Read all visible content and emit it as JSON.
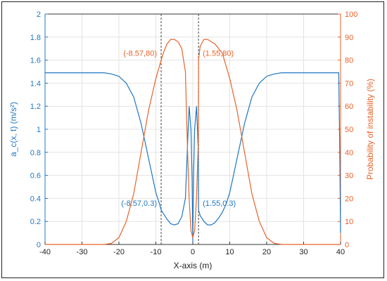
{
  "chart_data": {
    "type": "line",
    "xlabel": "X-axis (m)",
    "ylabel_left": "a_c(x, t) (m/s²)",
    "ylabel_right": "Probability of instability (%)",
    "xlim": [
      -40,
      40
    ],
    "ylim_left": [
      0,
      2
    ],
    "ylim_right": [
      0,
      100
    ],
    "x_ticks": [
      -40,
      -30,
      -20,
      -10,
      0,
      10,
      20,
      30,
      40
    ],
    "y_left_ticks": [
      0,
      0.2,
      0.4,
      0.6,
      0.8,
      1,
      1.2,
      1.4,
      1.6,
      1.8,
      2
    ],
    "y_left_tick_labels": [
      "0",
      "0.2",
      "0.4",
      "0.6",
      "0.8",
      "1",
      "1.2",
      "1.4",
      "1.6",
      "1.8",
      "2"
    ],
    "y_right_ticks": [
      0,
      10,
      20,
      30,
      40,
      50,
      60,
      70,
      80,
      90,
      100
    ],
    "grid": true,
    "colors": {
      "left": "#1f77c4",
      "right": "#e8622a",
      "vline": "#444444"
    },
    "series": [
      {
        "axis": "left",
        "color": "#1f77c4",
        "x": [
          -40,
          -24,
          -22,
          -20,
          -18,
          -16,
          -14,
          -13,
          -12,
          -11,
          -10,
          -9,
          -8.57,
          -8,
          -7,
          -6,
          -5,
          -4,
          -3,
          -2,
          -1.5,
          -1,
          -0.5,
          -0.2,
          0,
          0.2,
          0.5,
          1,
          1.5,
          1.55,
          2,
          3,
          4,
          5,
          6,
          7,
          8,
          9,
          10,
          11,
          12,
          13,
          14,
          16,
          18,
          20,
          22,
          24,
          39.5,
          39.8,
          40
        ],
        "y": [
          1.49,
          1.49,
          1.48,
          1.46,
          1.4,
          1.28,
          1.05,
          0.9,
          0.75,
          0.6,
          0.45,
          0.35,
          0.3,
          0.27,
          0.22,
          0.18,
          0.17,
          0.18,
          0.24,
          0.4,
          0.8,
          1.2,
          1.0,
          0.6,
          0.02,
          0.6,
          1.0,
          1.2,
          0.8,
          0.3,
          0.25,
          0.2,
          0.17,
          0.17,
          0.19,
          0.23,
          0.28,
          0.35,
          0.45,
          0.6,
          0.75,
          0.9,
          1.05,
          1.28,
          1.4,
          1.46,
          1.48,
          1.49,
          1.49,
          0.8,
          0.1
        ]
      },
      {
        "axis": "right",
        "color": "#e8622a",
        "x": [
          -40,
          -24,
          -22,
          -20,
          -18,
          -16,
          -14,
          -12,
          -10,
          -8.57,
          -8,
          -7,
          -6,
          -5,
          -4,
          -3,
          -2,
          -1.5,
          -1,
          -0.5,
          0,
          0.5,
          1,
          1.5,
          1.55,
          2,
          3,
          4,
          5,
          6,
          7,
          8,
          10,
          12,
          14,
          16,
          18,
          20,
          22,
          24,
          40
        ],
        "y": [
          0,
          0,
          0.5,
          3,
          10,
          22,
          40,
          58,
          72,
          80,
          83,
          87,
          89,
          89,
          88,
          85,
          75,
          45,
          20,
          6,
          3,
          6,
          20,
          45,
          80,
          86,
          89,
          89,
          88,
          87,
          85,
          83,
          72,
          58,
          40,
          22,
          10,
          3,
          0.5,
          0,
          0
        ]
      }
    ],
    "vlines": [
      -8.57,
      1.55
    ],
    "annotations": [
      {
        "text": "(-8.57,80)",
        "x": -8.57,
        "y": 80,
        "axis": "right",
        "color": "#e8622a",
        "align": "end"
      },
      {
        "text": "(1.55,80)",
        "x": 1.55,
        "y": 80,
        "axis": "right",
        "color": "#e8622a",
        "align": "start"
      },
      {
        "text": "(-8.57,0.3)",
        "x": -8.57,
        "y": 0.3,
        "axis": "left",
        "color": "#1f77c4",
        "align": "end"
      },
      {
        "text": "(1.55,0.3)",
        "x": 1.55,
        "y": 0.3,
        "axis": "left",
        "color": "#1f77c4",
        "align": "start"
      }
    ]
  }
}
